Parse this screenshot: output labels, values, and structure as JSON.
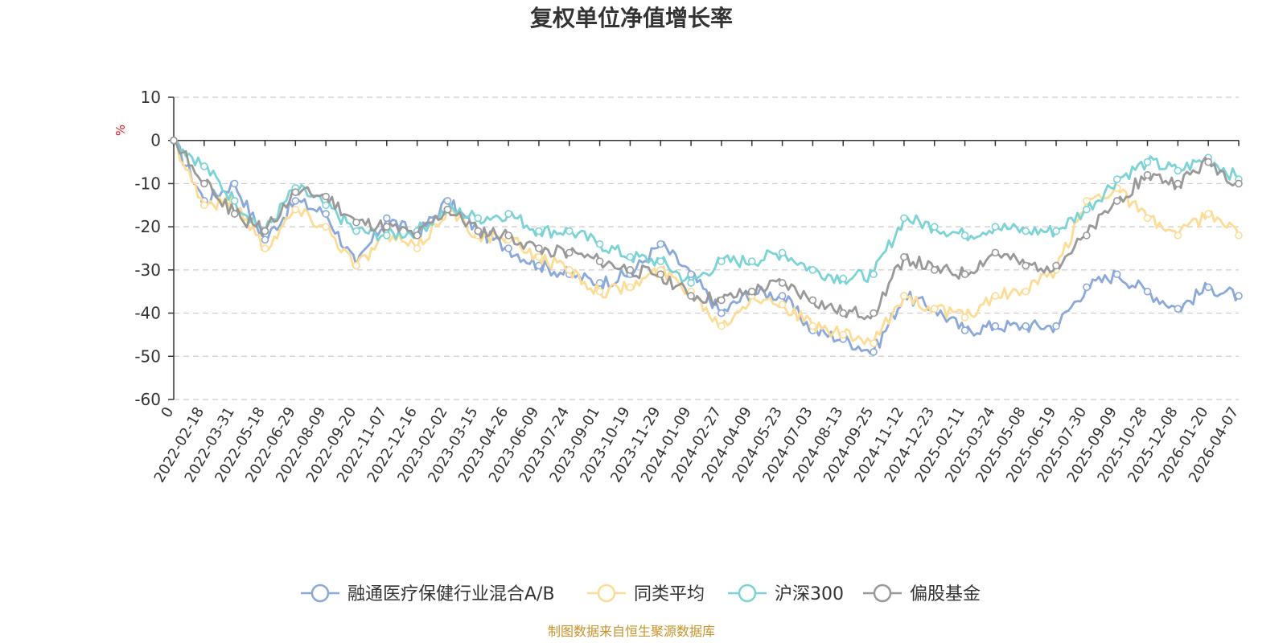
{
  "colors": {
    "fund": "#8AA8DA",
    "peer_avg": "#FDDC96",
    "hs300": "#7BD3D5",
    "equity_funds": "#999999",
    "unit_label": "#e8141a",
    "source": "#c8922a",
    "axis": "#333333",
    "grid": "#cccccc"
  },
  "chart_data": {
    "type": "line",
    "title": "复权单位净值增长率",
    "ylabel": "%",
    "xlabel": "",
    "ylim": [
      -60,
      10
    ],
    "y_ticks": [
      "10",
      "0",
      "-10",
      "-20",
      "-30",
      "-40",
      "-50",
      "-60"
    ],
    "y_tick_values": [
      10,
      0,
      -10,
      -20,
      -30,
      -40,
      -50,
      -60
    ],
    "grid": true,
    "legend_position": "bottom",
    "x": [
      "0",
      "2022-02-18",
      "2022-03-31",
      "2022-05-18",
      "2022-06-29",
      "2022-08-09",
      "2022-09-20",
      "2022-11-07",
      "2022-12-16",
      "2023-02-02",
      "2023-03-15",
      "2023-04-26",
      "2023-06-09",
      "2023-07-24",
      "2023-09-01",
      "2023-10-19",
      "2023-11-29",
      "2024-01-09",
      "2024-02-27",
      "2024-04-09",
      "2024-05-23",
      "2024-07-03",
      "2024-08-13",
      "2024-09-25",
      "2024-11-12",
      "2024-12-23",
      "2025-02-11",
      "2025-03-24",
      "2025-05-08",
      "2025-06-19",
      "2025-07-30",
      "2025-09-09",
      "2025-10-28",
      "2025-12-08",
      "2026-01-20",
      "2026-04-07"
    ],
    "series": [
      {
        "name": "融通医疗保健行业混合A/B",
        "color_key": "fund",
        "values": [
          0,
          -14,
          -10,
          -23,
          -14,
          -17,
          -29,
          -18,
          -22,
          -14,
          -21,
          -25,
          -29,
          -31,
          -33,
          -31,
          -24,
          -31,
          -40,
          -35,
          -36,
          -44,
          -46,
          -49,
          -36,
          -39,
          -44,
          -43,
          -43,
          -43,
          -34,
          -31,
          -35,
          -39,
          -34,
          -36
        ]
      },
      {
        "name": "同类平均",
        "color_key": "peer_avg",
        "values": [
          0,
          -15,
          -14,
          -25,
          -16,
          -20,
          -29,
          -22,
          -25,
          -16,
          -22,
          -23,
          -27,
          -30,
          -35,
          -34,
          -30,
          -35,
          -43,
          -36,
          -38,
          -43,
          -45,
          -47,
          -36,
          -39,
          -41,
          -36,
          -35,
          -30,
          -14,
          -11,
          -18,
          -22,
          -17,
          -22
        ]
      },
      {
        "name": "沪深300",
        "color_key": "hs300",
        "values": [
          0,
          -6,
          -14,
          -21,
          -11,
          -15,
          -21,
          -22,
          -21,
          -16,
          -18,
          -17,
          -21,
          -21,
          -24,
          -27,
          -28,
          -33,
          -28,
          -28,
          -26,
          -30,
          -32,
          -31,
          -18,
          -20,
          -22,
          -20,
          -21,
          -21,
          -16,
          -9,
          -5,
          -7,
          -4,
          -9
        ]
      },
      {
        "name": "偏股基金",
        "color_key": "equity_funds",
        "values": [
          0,
          -10,
          -17,
          -21,
          -12,
          -13,
          -19,
          -20,
          -22,
          -16,
          -21,
          -22,
          -25,
          -26,
          -28,
          -30,
          -31,
          -36,
          -37,
          -35,
          -33,
          -37,
          -40,
          -40,
          -27,
          -30,
          -31,
          -26,
          -29,
          -29,
          -22,
          -14,
          -8,
          -10,
          -5,
          -10
        ]
      }
    ]
  },
  "legend": {
    "items": [
      "融通医疗保健行业混合A/B",
      "同类平均",
      "沪深300",
      "偏股基金"
    ]
  },
  "source_text": "制图数据来自恒生聚源数据库"
}
